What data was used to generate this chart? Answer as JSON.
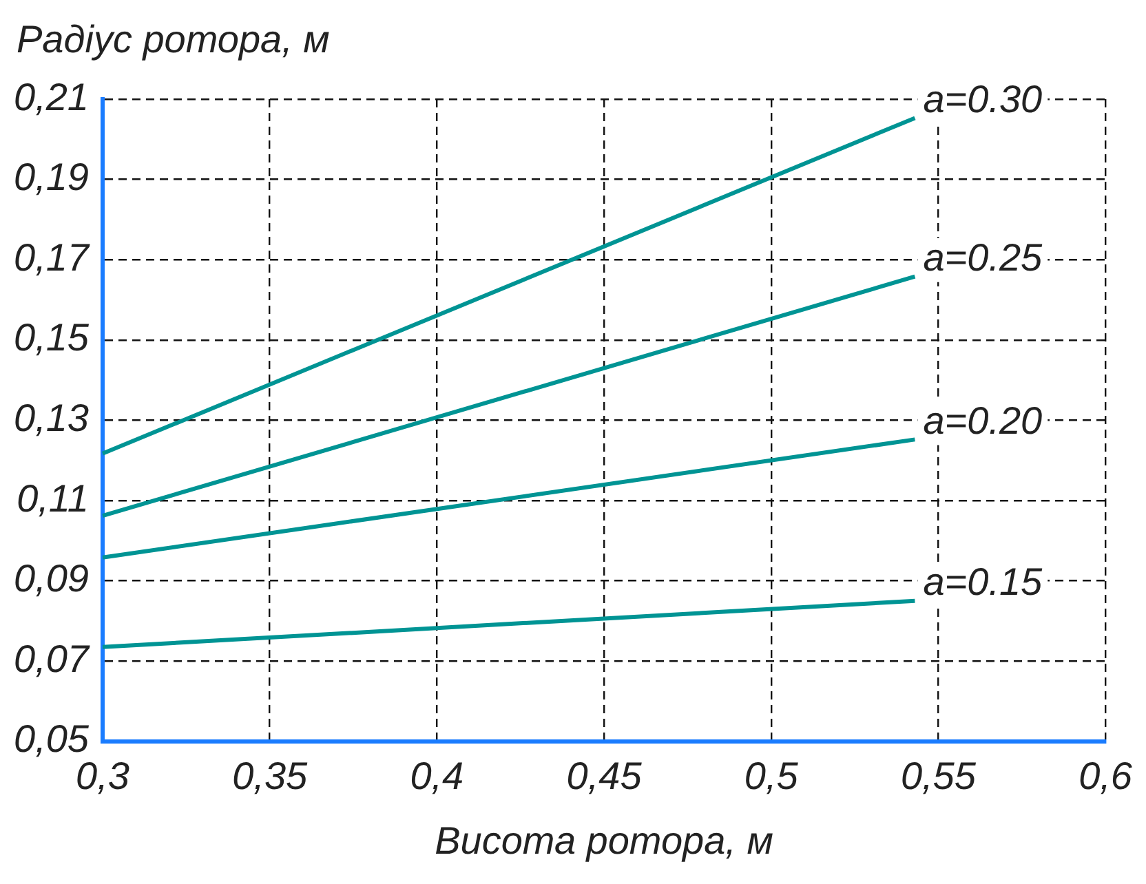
{
  "chart_data": {
    "type": "line",
    "xlabel": "Висота ротора, м",
    "ylabel": "Радіус ротора, м",
    "xlim": [
      0.3,
      0.6
    ],
    "xticks": [
      {
        "value": 0.3,
        "label": "0,3"
      },
      {
        "value": 0.35,
        "label": "0,35"
      },
      {
        "value": 0.4,
        "label": "0,4"
      },
      {
        "value": 0.45,
        "label": "0,45"
      },
      {
        "value": 0.5,
        "label": "0,5"
      },
      {
        "value": 0.55,
        "label": "0,55"
      },
      {
        "value": 0.6,
        "label": "0,6"
      }
    ],
    "ylim": [
      0.05,
      0.21
    ],
    "yticks": [
      {
        "value": 0.05,
        "label": "0,05"
      },
      {
        "value": 0.07,
        "label": "0,07"
      },
      {
        "value": 0.09,
        "label": "0,09"
      },
      {
        "value": 0.11,
        "label": "0,11"
      },
      {
        "value": 0.13,
        "label": "0,13"
      },
      {
        "value": 0.15,
        "label": "0,15"
      },
      {
        "value": 0.17,
        "label": "0,17"
      },
      {
        "value": 0.19,
        "label": "0,19"
      },
      {
        "value": 0.21,
        "label": "0,21"
      }
    ],
    "grid": true,
    "legend": false,
    "marker": "none",
    "line_style": "solid",
    "x": [
      0.3,
      0.543
    ],
    "series": [
      {
        "name": "a=0.30",
        "color": "#009494",
        "values": [
          0.1217,
          0.2053
        ]
      },
      {
        "name": "a=0.25",
        "color": "#009494",
        "values": [
          0.1062,
          0.1658
        ]
      },
      {
        "name": "a=0.20",
        "color": "#009494",
        "values": [
          0.0958,
          0.1252
        ]
      },
      {
        "name": "a=0.15",
        "color": "#009494",
        "values": [
          0.0735,
          0.085
        ]
      }
    ]
  }
}
